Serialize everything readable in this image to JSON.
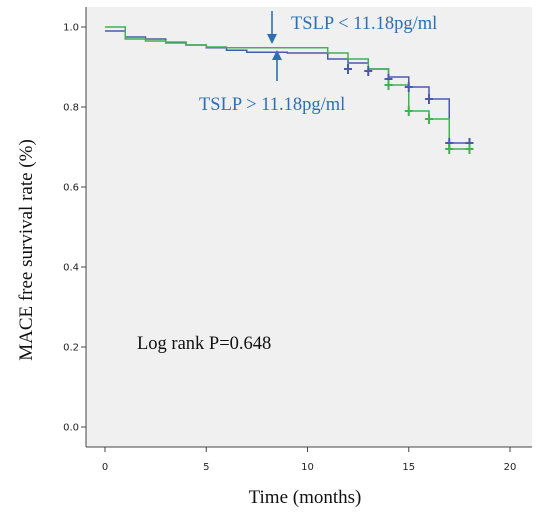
{
  "chart_data": {
    "type": "line",
    "title": "",
    "xlabel": "Time (months)",
    "ylabel": "MACE free survival rate (%)",
    "xlim": [
      0,
      20
    ],
    "ylim": [
      0.0,
      1.0
    ],
    "xticks": [
      "0",
      "5",
      "10",
      "15",
      "20"
    ],
    "yticks": [
      "0.0",
      "0.2",
      "0.4",
      "0.6",
      "0.8",
      "1.0"
    ],
    "grid": false,
    "series": [
      {
        "color": "#4a5aa8",
        "steps": [
          [
            0,
            0.99
          ],
          [
            1,
            0.975
          ],
          [
            2,
            0.97
          ],
          [
            3,
            0.962
          ],
          [
            4,
            0.955
          ],
          [
            5,
            0.948
          ],
          [
            6,
            0.942
          ],
          [
            7,
            0.937
          ],
          [
            9,
            0.935
          ],
          [
            11,
            0.92
          ],
          [
            12,
            0.91
          ],
          [
            13,
            0.895
          ],
          [
            14,
            0.875
          ],
          [
            15,
            0.85
          ],
          [
            16,
            0.82
          ],
          [
            17,
            0.71
          ],
          [
            18,
            0.71
          ]
        ],
        "censored": [
          [
            12,
            0.895
          ],
          [
            13,
            0.89
          ],
          [
            14,
            0.87
          ],
          [
            15,
            0.85
          ],
          [
            16,
            0.82
          ],
          [
            17,
            0.71
          ],
          [
            18,
            0.71
          ]
        ]
      },
      {
        "color": "#3fb34f",
        "steps": [
          [
            0,
            1.0
          ],
          [
            1,
            0.97
          ],
          [
            2,
            0.965
          ],
          [
            3,
            0.96
          ],
          [
            4,
            0.955
          ],
          [
            5,
            0.95
          ],
          [
            6,
            0.948
          ],
          [
            9,
            0.948
          ],
          [
            11,
            0.935
          ],
          [
            12,
            0.92
          ],
          [
            13,
            0.895
          ],
          [
            14,
            0.855
          ],
          [
            15,
            0.79
          ],
          [
            16,
            0.77
          ],
          [
            17,
            0.695
          ],
          [
            18,
            0.695
          ]
        ],
        "censored": [
          [
            14,
            0.855
          ],
          [
            15,
            0.79
          ],
          [
            16,
            0.77
          ],
          [
            17,
            0.695
          ],
          [
            18,
            0.695
          ]
        ]
      }
    ],
    "annotations": {
      "low_label": "TSLP < 11.18pg/ml",
      "high_label": "TSLP > 11.18pg/ml",
      "stat": "Log rank P=0.648"
    }
  }
}
